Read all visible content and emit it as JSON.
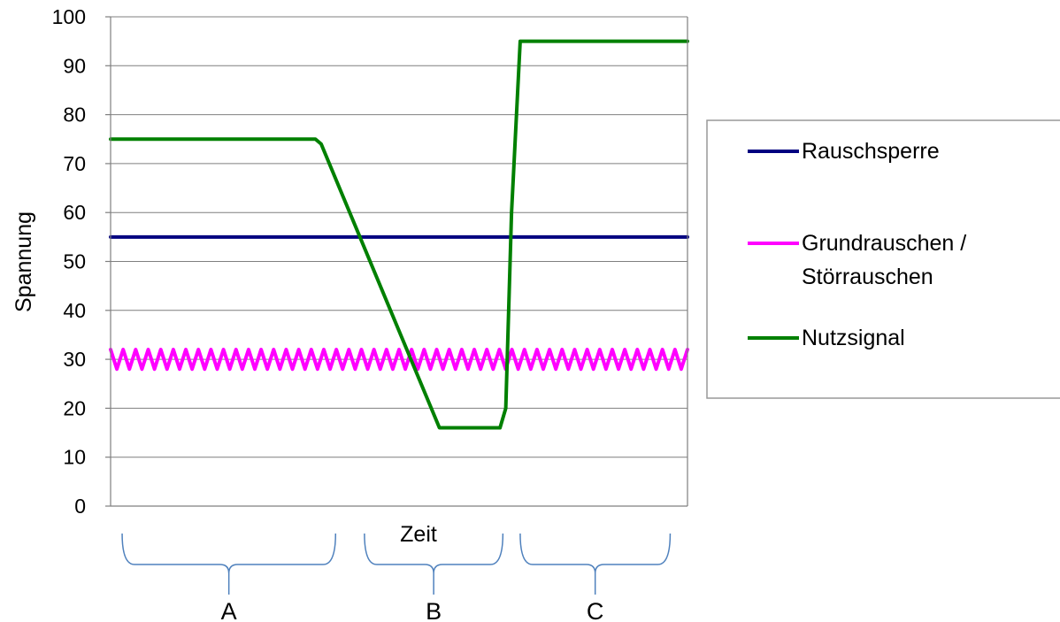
{
  "chart_data": {
    "type": "line",
    "xlabel": "Zeit",
    "ylabel": "Spannung",
    "ylim": [
      0,
      100
    ],
    "yticks": [
      0,
      10,
      20,
      30,
      40,
      50,
      60,
      70,
      80,
      90,
      100
    ],
    "grid": "horizontal",
    "legend": "right",
    "series": [
      {
        "name": "Rauschsperre",
        "color": "#000080",
        "style": "flat",
        "x": [
          0,
          100
        ],
        "y": [
          55,
          55
        ]
      },
      {
        "name": "Grundrauschen / Störrauschen",
        "color": "#ff00ff",
        "style": "zigzag",
        "x": [
          0,
          100
        ],
        "y": [
          30,
          30
        ],
        "amplitude": 2,
        "cycles": 46
      },
      {
        "name": "Nutzsignal",
        "color": "#008000",
        "style": "line",
        "x": [
          0,
          35.5,
          36.5,
          57,
          67.5,
          68.5,
          69.5,
          71,
          100
        ],
        "y": [
          75,
          75,
          74,
          16,
          16,
          20,
          60,
          95,
          95
        ]
      }
    ],
    "segments": [
      {
        "label": "A",
        "from": 2,
        "to": 39
      },
      {
        "label": "B",
        "from": 44,
        "to": 68
      },
      {
        "label": "C",
        "from": 71,
        "to": 97
      }
    ]
  }
}
